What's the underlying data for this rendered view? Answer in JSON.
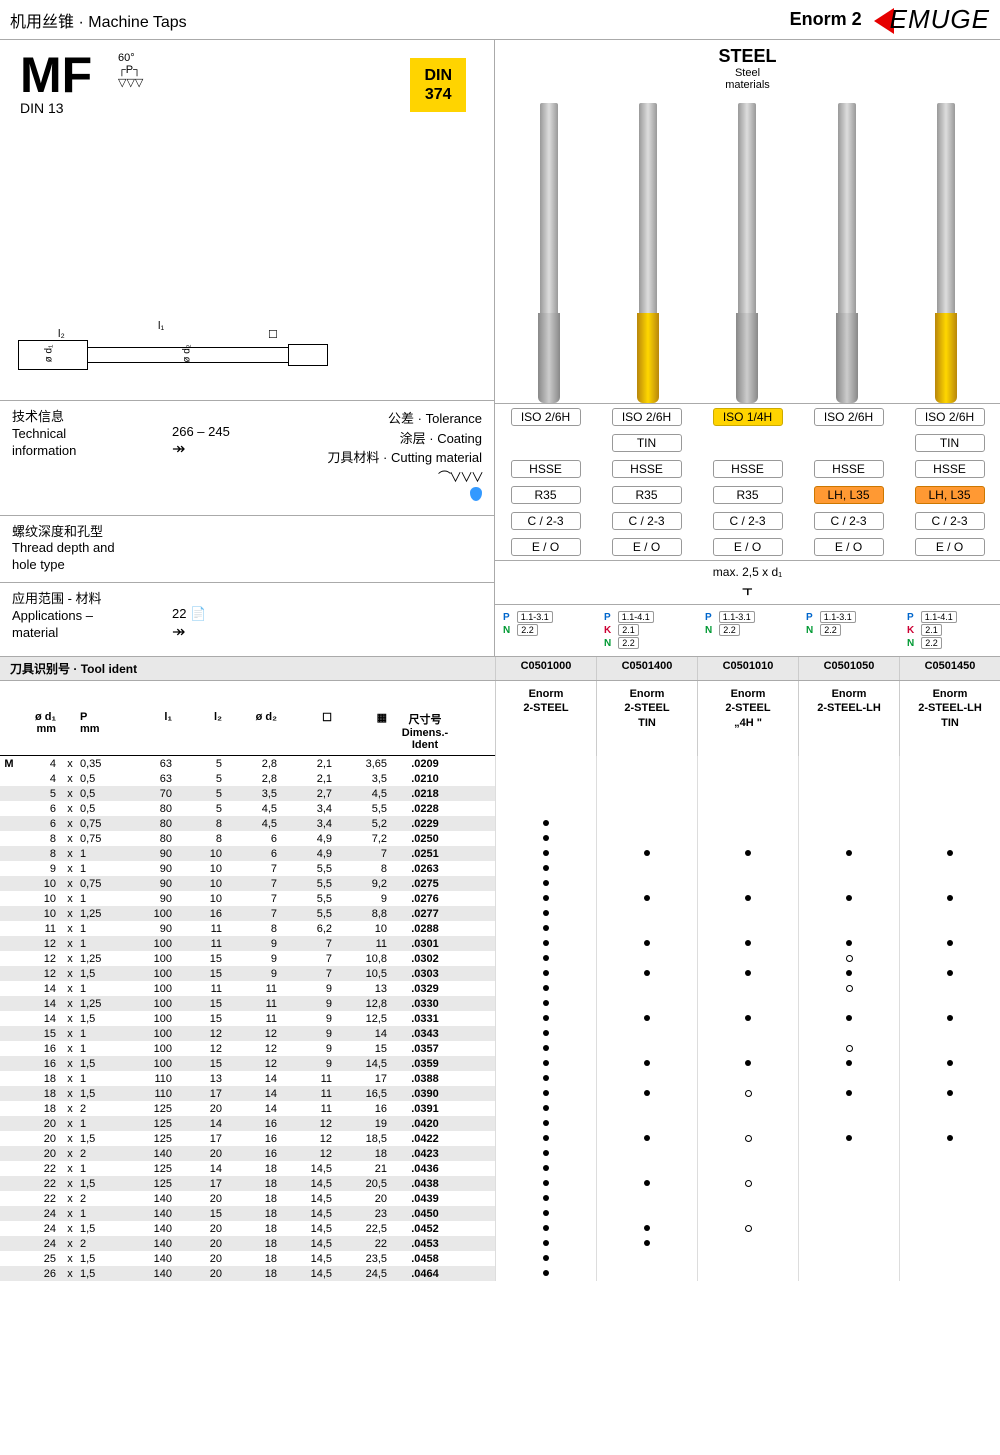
{
  "header": {
    "title_cn": "机用丝锥",
    "title_en": "Machine Taps",
    "series": "Enorm 2",
    "brand": "EMUGE"
  },
  "mf": {
    "title": "MF",
    "sub": "DIN 13",
    "din_top": "DIN",
    "din_num": "374",
    "angle": "60°",
    "angle_p": "P"
  },
  "diagram": {
    "l1": "l₁",
    "l2": "l₂",
    "d1": "ø d₁",
    "d2": "ø d₂",
    "sq": "☐"
  },
  "steel": {
    "title": "STEEL",
    "sub1": "Steel",
    "sub2": "materials"
  },
  "info": {
    "tech_cn": "技术信息",
    "tech_en1": "Technical",
    "tech_en2": "information",
    "page_ref": "266 – 245",
    "arrow": "↠",
    "tol_cn": "公差",
    "tol_en": "Tolerance",
    "coat_cn": "涂层",
    "coat_en": "Coating",
    "cut_cn": "刀具材料",
    "cut_en": "Cutting material"
  },
  "specs": {
    "iso": [
      "ISO 2/6H",
      "ISO 2/6H",
      "ISO 1/4H",
      "ISO 2/6H",
      "ISO 2/6H"
    ],
    "coating": [
      "",
      "TIN",
      "",
      "",
      "TIN"
    ],
    "mat": [
      "HSSE",
      "HSSE",
      "HSSE",
      "HSSE",
      "HSSE"
    ],
    "helix": [
      "R35",
      "R35",
      "R35",
      "LH, L35",
      "LH, L35"
    ],
    "chamfer": [
      "C / 2-3",
      "C / 2-3",
      "C / 2-3",
      "C / 2-3",
      "C / 2-3"
    ],
    "cool": [
      "E / O",
      "E / O",
      "E / O",
      "E / O",
      "E / O"
    ],
    "max_note": "max. 2,5 x d₁"
  },
  "thread": {
    "cn": "螺纹深度和孔型",
    "en1": "Thread depth and",
    "en2": "hole type"
  },
  "app": {
    "cn": "应用范围 - 材料",
    "en1": "Applications –",
    "en2": "material",
    "page": "22",
    "arrow": "↠",
    "cols": [
      [
        [
          "P",
          "1.1-3.1"
        ],
        [
          "N",
          "2.2"
        ]
      ],
      [
        [
          "P",
          "1.1-4.1"
        ],
        [
          "K",
          "2.1"
        ],
        [
          "N",
          "2.2"
        ]
      ],
      [
        [
          "P",
          "1.1-3.1"
        ],
        [
          "N",
          "2.2"
        ]
      ],
      [
        [
          "P",
          "1.1-3.1"
        ],
        [
          "N",
          "2.2"
        ]
      ],
      [
        [
          "P",
          "1.1-4.1"
        ],
        [
          "K",
          "2.1"
        ],
        [
          "N",
          "2.2"
        ]
      ]
    ]
  },
  "ident": {
    "label_cn": "刀具识别号",
    "label_en": "Tool ident",
    "codes": [
      "C0501000",
      "C0501400",
      "C0501010",
      "C0501050",
      "C0501450"
    ]
  },
  "series_names": [
    "Enorm\n2-STEEL",
    "Enorm\n2-STEEL\nTIN",
    "Enorm\n2-STEEL\n„4H \"",
    "Enorm\n2-STEEL-LH",
    "Enorm\n2-STEEL-LH\nTIN"
  ],
  "col_headers": {
    "d1": "ø d₁",
    "d1_unit": "mm",
    "p": "P",
    "p_unit": "mm",
    "l1": "l₁",
    "l2": "l₂",
    "d2": "ø d₂",
    "sq": "☐",
    "dim_cn": "尺寸号",
    "dim_en1": "Dimens.-",
    "dim_en2": "Ident"
  },
  "rows": [
    {
      "m": "M",
      "d1": "4",
      "p": "0,35",
      "l1": "63",
      "l2": "5",
      "d2": "2,8",
      "sq": "2,1",
      "wt": "3,65",
      "id": ".0209",
      "a": [
        "",
        "",
        "",
        "",
        ""
      ]
    },
    {
      "d1": "4",
      "p": "0,5",
      "l1": "63",
      "l2": "5",
      "d2": "2,8",
      "sq": "2,1",
      "wt": "3,5",
      "id": ".0210",
      "a": [
        "",
        "",
        "",
        "",
        ""
      ]
    },
    {
      "d1": "5",
      "p": "0,5",
      "l1": "70",
      "l2": "5",
      "d2": "3,5",
      "sq": "2,7",
      "wt": "4,5",
      "id": ".0218",
      "a": [
        "",
        "",
        "",
        "",
        ""
      ]
    },
    {
      "d1": "6",
      "p": "0,5",
      "l1": "80",
      "l2": "5",
      "d2": "4,5",
      "sq": "3,4",
      "wt": "5,5",
      "id": ".0228",
      "a": [
        "",
        "",
        "",
        "",
        ""
      ]
    },
    {
      "d1": "6",
      "p": "0,75",
      "l1": "80",
      "l2": "8",
      "d2": "4,5",
      "sq": "3,4",
      "wt": "5,2",
      "id": ".0229",
      "a": [
        "d",
        "",
        "",
        "",
        ""
      ]
    },
    {
      "d1": "8",
      "p": "0,75",
      "l1": "80",
      "l2": "8",
      "d2": "6",
      "sq": "4,9",
      "wt": "7,2",
      "id": ".0250",
      "a": [
        "d",
        "",
        "",
        "",
        ""
      ]
    },
    {
      "d1": "8",
      "p": "1",
      "l1": "90",
      "l2": "10",
      "d2": "6",
      "sq": "4,9",
      "wt": "7",
      "id": ".0251",
      "a": [
        "d",
        "d",
        "d",
        "d",
        "d"
      ]
    },
    {
      "d1": "9",
      "p": "1",
      "l1": "90",
      "l2": "10",
      "d2": "7",
      "sq": "5,5",
      "wt": "8",
      "id": ".0263",
      "a": [
        "d",
        "",
        "",
        "",
        ""
      ]
    },
    {
      "d1": "10",
      "p": "0,75",
      "l1": "90",
      "l2": "10",
      "d2": "7",
      "sq": "5,5",
      "wt": "9,2",
      "id": ".0275",
      "a": [
        "d",
        "",
        "",
        "",
        ""
      ]
    },
    {
      "d1": "10",
      "p": "1",
      "l1": "90",
      "l2": "10",
      "d2": "7",
      "sq": "5,5",
      "wt": "9",
      "id": ".0276",
      "a": [
        "d",
        "d",
        "d",
        "d",
        "d"
      ]
    },
    {
      "d1": "10",
      "p": "1,25",
      "l1": "100",
      "l2": "16",
      "d2": "7",
      "sq": "5,5",
      "wt": "8,8",
      "id": ".0277",
      "a": [
        "d",
        "",
        "",
        "",
        ""
      ]
    },
    {
      "d1": "11",
      "p": "1",
      "l1": "90",
      "l2": "11",
      "d2": "8",
      "sq": "6,2",
      "wt": "10",
      "id": ".0288",
      "a": [
        "d",
        "",
        "",
        "",
        ""
      ]
    },
    {
      "d1": "12",
      "p": "1",
      "l1": "100",
      "l2": "11",
      "d2": "9",
      "sq": "7",
      "wt": "11",
      "id": ".0301",
      "a": [
        "d",
        "d",
        "d",
        "d",
        "d"
      ]
    },
    {
      "d1": "12",
      "p": "1,25",
      "l1": "100",
      "l2": "15",
      "d2": "9",
      "sq": "7",
      "wt": "10,8",
      "id": ".0302",
      "a": [
        "d",
        "",
        "",
        "o",
        ""
      ]
    },
    {
      "d1": "12",
      "p": "1,5",
      "l1": "100",
      "l2": "15",
      "d2": "9",
      "sq": "7",
      "wt": "10,5",
      "id": ".0303",
      "a": [
        "d",
        "d",
        "d",
        "d",
        "d"
      ]
    },
    {
      "d1": "14",
      "p": "1",
      "l1": "100",
      "l2": "11",
      "d2": "11",
      "sq": "9",
      "wt": "13",
      "id": ".0329",
      "a": [
        "d",
        "",
        "",
        "o",
        ""
      ]
    },
    {
      "d1": "14",
      "p": "1,25",
      "l1": "100",
      "l2": "15",
      "d2": "11",
      "sq": "9",
      "wt": "12,8",
      "id": ".0330",
      "a": [
        "d",
        "",
        "",
        "",
        ""
      ]
    },
    {
      "d1": "14",
      "p": "1,5",
      "l1": "100",
      "l2": "15",
      "d2": "11",
      "sq": "9",
      "wt": "12,5",
      "id": ".0331",
      "a": [
        "d",
        "d",
        "d",
        "d",
        "d"
      ]
    },
    {
      "d1": "15",
      "p": "1",
      "l1": "100",
      "l2": "12",
      "d2": "12",
      "sq": "9",
      "wt": "14",
      "id": ".0343",
      "a": [
        "d",
        "",
        "",
        "",
        ""
      ]
    },
    {
      "d1": "16",
      "p": "1",
      "l1": "100",
      "l2": "12",
      "d2": "12",
      "sq": "9",
      "wt": "15",
      "id": ".0357",
      "a": [
        "d",
        "",
        "",
        "o",
        ""
      ]
    },
    {
      "d1": "16",
      "p": "1,5",
      "l1": "100",
      "l2": "15",
      "d2": "12",
      "sq": "9",
      "wt": "14,5",
      "id": ".0359",
      "a": [
        "d",
        "d",
        "d",
        "d",
        "d"
      ]
    },
    {
      "d1": "18",
      "p": "1",
      "l1": "110",
      "l2": "13",
      "d2": "14",
      "sq": "11",
      "wt": "17",
      "id": ".0388",
      "a": [
        "d",
        "",
        "",
        "",
        ""
      ]
    },
    {
      "d1": "18",
      "p": "1,5",
      "l1": "110",
      "l2": "17",
      "d2": "14",
      "sq": "11",
      "wt": "16,5",
      "id": ".0390",
      "a": [
        "d",
        "d",
        "o",
        "d",
        "d"
      ]
    },
    {
      "d1": "18",
      "p": "2",
      "l1": "125",
      "l2": "20",
      "d2": "14",
      "sq": "11",
      "wt": "16",
      "id": ".0391",
      "a": [
        "d",
        "",
        "",
        "",
        ""
      ]
    },
    {
      "d1": "20",
      "p": "1",
      "l1": "125",
      "l2": "14",
      "d2": "16",
      "sq": "12",
      "wt": "19",
      "id": ".0420",
      "a": [
        "d",
        "",
        "",
        "",
        ""
      ]
    },
    {
      "d1": "20",
      "p": "1,5",
      "l1": "125",
      "l2": "17",
      "d2": "16",
      "sq": "12",
      "wt": "18,5",
      "id": ".0422",
      "a": [
        "d",
        "d",
        "o",
        "d",
        "d"
      ]
    },
    {
      "d1": "20",
      "p": "2",
      "l1": "140",
      "l2": "20",
      "d2": "16",
      "sq": "12",
      "wt": "18",
      "id": ".0423",
      "a": [
        "d",
        "",
        "",
        "",
        ""
      ]
    },
    {
      "d1": "22",
      "p": "1",
      "l1": "125",
      "l2": "14",
      "d2": "18",
      "sq": "14,5",
      "wt": "21",
      "id": ".0436",
      "a": [
        "d",
        "",
        "",
        "",
        ""
      ]
    },
    {
      "d1": "22",
      "p": "1,5",
      "l1": "125",
      "l2": "17",
      "d2": "18",
      "sq": "14,5",
      "wt": "20,5",
      "id": ".0438",
      "a": [
        "d",
        "d",
        "o",
        "",
        ""
      ]
    },
    {
      "d1": "22",
      "p": "2",
      "l1": "140",
      "l2": "20",
      "d2": "18",
      "sq": "14,5",
      "wt": "20",
      "id": ".0439",
      "a": [
        "d",
        "",
        "",
        "",
        ""
      ]
    },
    {
      "d1": "24",
      "p": "1",
      "l1": "140",
      "l2": "15",
      "d2": "18",
      "sq": "14,5",
      "wt": "23",
      "id": ".0450",
      "a": [
        "d",
        "",
        "",
        "",
        ""
      ]
    },
    {
      "d1": "24",
      "p": "1,5",
      "l1": "140",
      "l2": "20",
      "d2": "18",
      "sq": "14,5",
      "wt": "22,5",
      "id": ".0452",
      "a": [
        "d",
        "d",
        "o",
        "",
        ""
      ]
    },
    {
      "d1": "24",
      "p": "2",
      "l1": "140",
      "l2": "20",
      "d2": "18",
      "sq": "14,5",
      "wt": "22",
      "id": ".0453",
      "a": [
        "d",
        "d",
        "",
        "",
        ""
      ]
    },
    {
      "d1": "25",
      "p": "1,5",
      "l1": "140",
      "l2": "20",
      "d2": "18",
      "sq": "14,5",
      "wt": "23,5",
      "id": ".0458",
      "a": [
        "d",
        "",
        "",
        "",
        ""
      ]
    },
    {
      "d1": "26",
      "p": "1,5",
      "l1": "140",
      "l2": "20",
      "d2": "18",
      "sq": "14,5",
      "wt": "24,5",
      "id": ".0464",
      "a": [
        "d",
        "",
        "",
        "",
        ""
      ]
    }
  ],
  "highlight": {
    "iso_yellow_idx": 2,
    "helix_orange_idx": [
      3,
      4
    ]
  },
  "shaded_ids": [
    ".0218",
    ".0229",
    ".0251",
    ".0275",
    ".0277",
    ".0301",
    ".0303",
    ".0330",
    ".0343",
    ".0359",
    ".0390",
    ".0420",
    ".0423",
    ".0438",
    ".0450",
    ".0453",
    ".0464"
  ],
  "tap_gold": [
    false,
    true,
    false,
    false,
    true
  ]
}
